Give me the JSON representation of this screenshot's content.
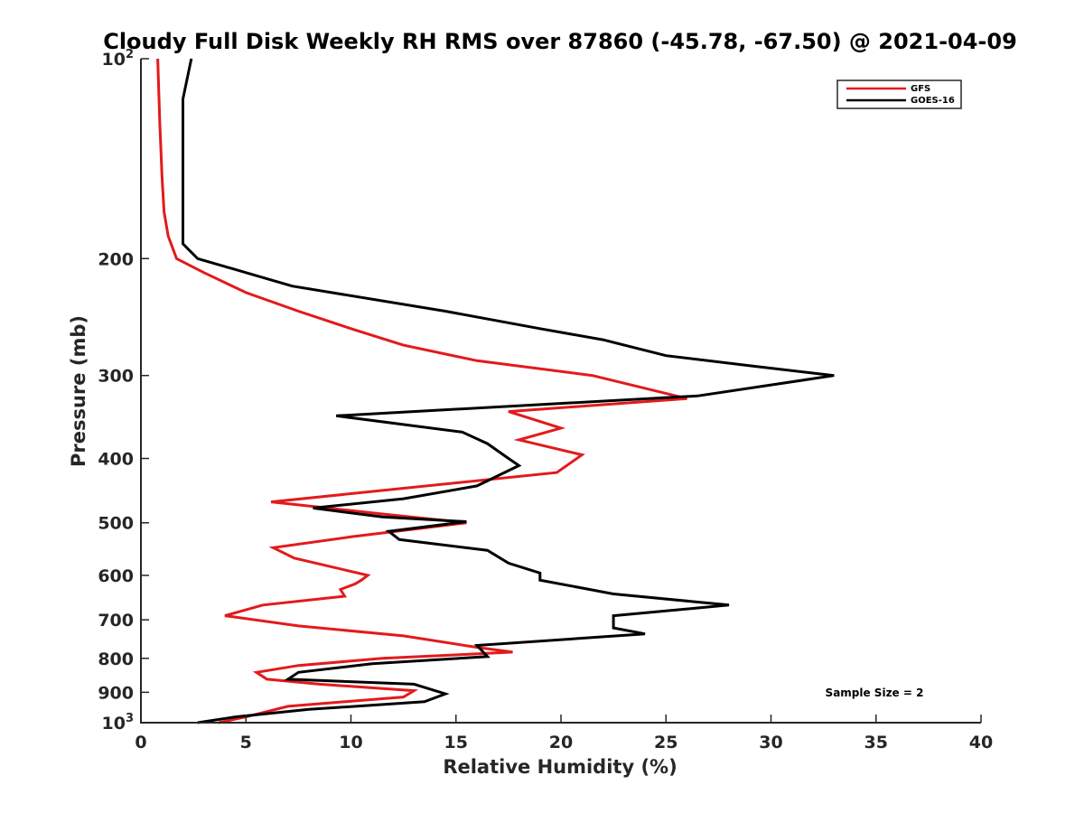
{
  "chart_data": {
    "type": "line",
    "title": "Cloudy Full Disk Weekly RH RMS over 87860 (-45.78, -67.50) @ 2021-04-09",
    "xlabel": "Relative Humidity (%)",
    "ylabel": "Pressure (mb)",
    "xlim": [
      0,
      40
    ],
    "ylim": [
      100,
      1000
    ],
    "y_scale": "log",
    "y_reversed": true,
    "grid": false,
    "legend_position": "top-right",
    "x_ticks": [
      "0",
      "5",
      "10",
      "15",
      "20",
      "25",
      "30",
      "35",
      "40"
    ],
    "y_ticks": [
      {
        "value": 100,
        "base": "10",
        "sup": "2"
      },
      {
        "value": 200,
        "base": "200",
        "sup": ""
      },
      {
        "value": 300,
        "base": "300",
        "sup": ""
      },
      {
        "value": 400,
        "base": "400",
        "sup": ""
      },
      {
        "value": 500,
        "base": "500",
        "sup": ""
      },
      {
        "value": 600,
        "base": "600",
        "sup": ""
      },
      {
        "value": 700,
        "base": "700",
        "sup": ""
      },
      {
        "value": 800,
        "base": "800",
        "sup": ""
      },
      {
        "value": 900,
        "base": "900",
        "sup": ""
      },
      {
        "value": 1000,
        "base": "10",
        "sup": "3"
      }
    ],
    "annotation": "Sample Size = 2",
    "series": [
      {
        "name": "GFS",
        "color": "#e31a1c",
        "points": [
          [
            0.8,
            100
          ],
          [
            0.9,
            125
          ],
          [
            1.0,
            150
          ],
          [
            1.1,
            170
          ],
          [
            1.3,
            185
          ],
          [
            1.7,
            200
          ],
          [
            3.0,
            210
          ],
          [
            5.0,
            225
          ],
          [
            7.5,
            240
          ],
          [
            10.0,
            255
          ],
          [
            12.5,
            270
          ],
          [
            16.0,
            285
          ],
          [
            21.5,
            300
          ],
          [
            26.0,
            325
          ],
          [
            17.5,
            340
          ],
          [
            20.0,
            360
          ],
          [
            18.0,
            375
          ],
          [
            21.0,
            395
          ],
          [
            19.8,
            420
          ],
          [
            6.2,
            465
          ],
          [
            11.5,
            485
          ],
          [
            15.5,
            500
          ],
          [
            10.0,
            525
          ],
          [
            6.3,
            545
          ],
          [
            7.3,
            565
          ],
          [
            10.8,
            600
          ],
          [
            10.5,
            610
          ],
          [
            10.2,
            618
          ],
          [
            9.5,
            630
          ],
          [
            9.7,
            645
          ],
          [
            5.8,
            665
          ],
          [
            4.0,
            690
          ],
          [
            7.5,
            715
          ],
          [
            12.5,
            740
          ],
          [
            16.0,
            770
          ],
          [
            17.7,
            783
          ],
          [
            11.5,
            800
          ],
          [
            7.5,
            820
          ],
          [
            5.5,
            840
          ],
          [
            6.0,
            860
          ],
          [
            8.5,
            875
          ],
          [
            13.0,
            895
          ],
          [
            12.5,
            915
          ],
          [
            7.0,
            945
          ],
          [
            5.0,
            980
          ],
          [
            3.7,
            1000
          ]
        ]
      },
      {
        "name": "GOES-16",
        "color": "#000000",
        "points": [
          [
            2.4,
            100
          ],
          [
            2.0,
            115
          ],
          [
            2.0,
            150
          ],
          [
            2.0,
            190
          ],
          [
            2.7,
            200
          ],
          [
            5.0,
            210
          ],
          [
            7.2,
            220
          ],
          [
            14.5,
            240
          ],
          [
            19.0,
            255
          ],
          [
            22.0,
            265
          ],
          [
            25.0,
            280
          ],
          [
            29.0,
            290
          ],
          [
            33.0,
            300
          ],
          [
            26.5,
            322
          ],
          [
            9.3,
            345
          ],
          [
            15.3,
            365
          ],
          [
            16.5,
            380
          ],
          [
            17.5,
            400
          ],
          [
            18.0,
            410
          ],
          [
            16.0,
            440
          ],
          [
            12.5,
            460
          ],
          [
            8.2,
            475
          ],
          [
            11.5,
            490
          ],
          [
            15.5,
            498
          ],
          [
            11.8,
            515
          ],
          [
            12.3,
            530
          ],
          [
            16.5,
            550
          ],
          [
            17.5,
            575
          ],
          [
            19.0,
            595
          ],
          [
            19.0,
            610
          ],
          [
            22.5,
            640
          ],
          [
            28.0,
            665
          ],
          [
            22.5,
            690
          ],
          [
            22.5,
            720
          ],
          [
            24.0,
            735
          ],
          [
            16.0,
            765
          ],
          [
            16.5,
            795
          ],
          [
            11.0,
            815
          ],
          [
            7.5,
            840
          ],
          [
            7.0,
            860
          ],
          [
            13.0,
            875
          ],
          [
            14.5,
            905
          ],
          [
            13.5,
            930
          ],
          [
            8.0,
            955
          ],
          [
            4.5,
            980
          ],
          [
            2.7,
            1000
          ]
        ]
      }
    ]
  }
}
